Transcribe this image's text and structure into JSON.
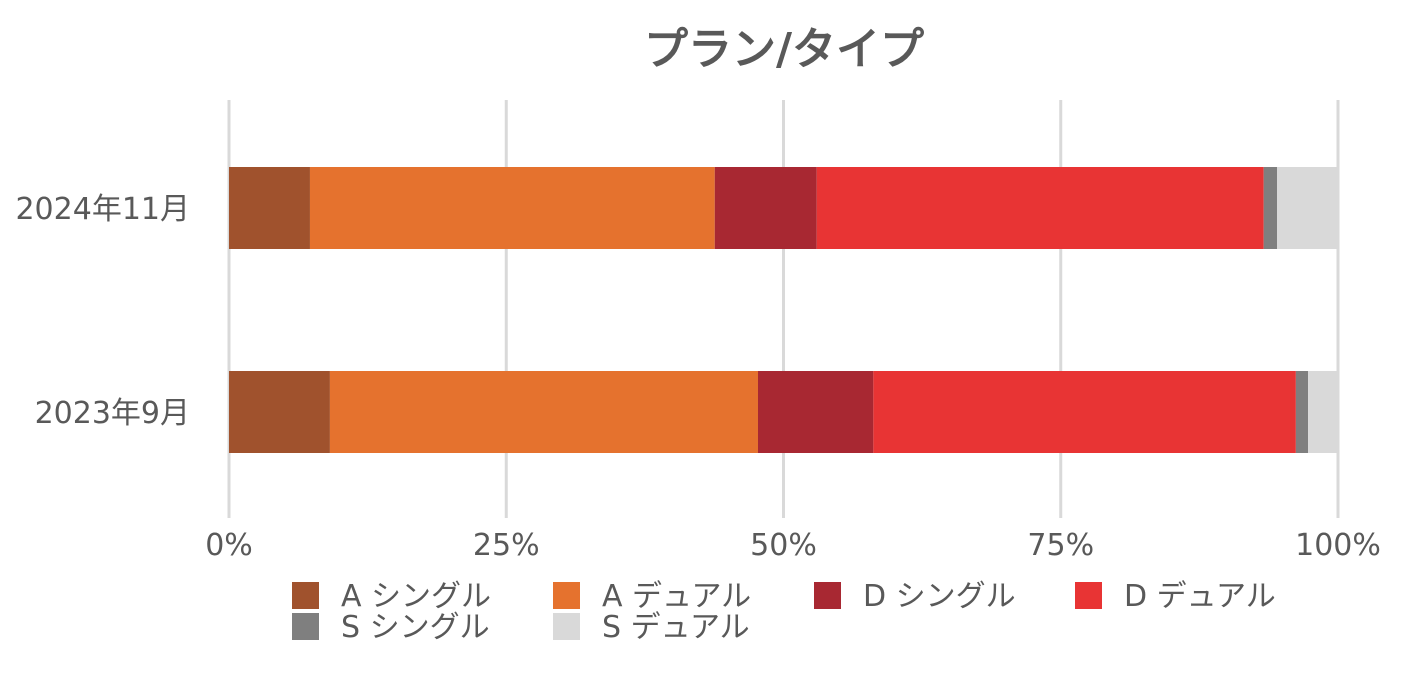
{
  "chart_data": {
    "type": "bar",
    "orientation": "horizontal",
    "stacked": "percent",
    "title": "プラン/タイプ",
    "categories": [
      "2024年11月",
      "2023年9月"
    ],
    "series": [
      {
        "name": "A シングル",
        "color": "#A0522D",
        "values": [
          7.3,
          9.1
        ]
      },
      {
        "name": "A デュアル",
        "color": "#E5722E",
        "values": [
          36.5,
          38.6
        ]
      },
      {
        "name": "D シングル",
        "color": "#A82832",
        "values": [
          9.2,
          10.4
        ]
      },
      {
        "name": "D デュアル",
        "color": "#E83434",
        "values": [
          40.3,
          38.1
        ]
      },
      {
        "name": "S シングル",
        "color": "#7F7F7F",
        "values": [
          1.2,
          1.1
        ]
      },
      {
        "name": "S デュアル",
        "color": "#D9D9D9",
        "values": [
          5.5,
          2.7
        ]
      }
    ],
    "xlim": [
      0,
      100
    ],
    "xticks": [
      "0%",
      "25%",
      "50%",
      "75%",
      "100%"
    ],
    "grid": true,
    "legend_position": "bottom"
  }
}
